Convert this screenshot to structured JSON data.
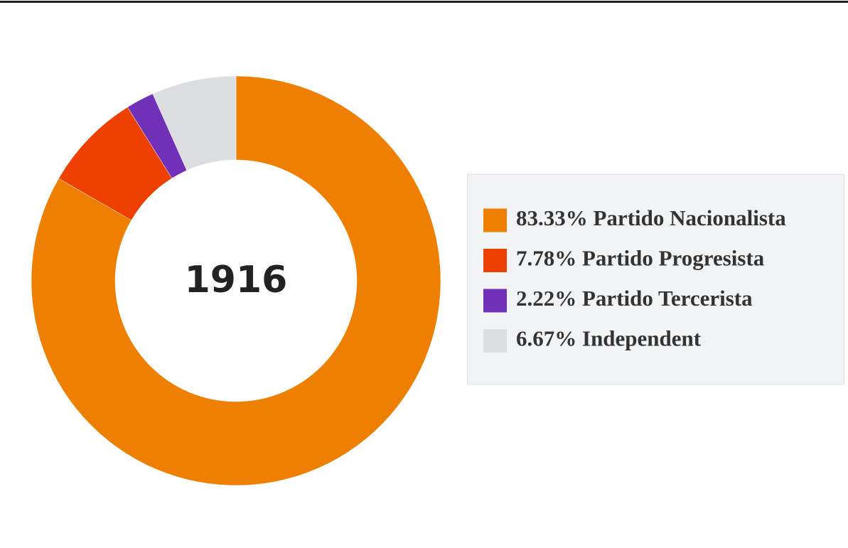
{
  "chart_data": {
    "type": "donut",
    "center_label": "1916",
    "categories": [
      "Partido Nacionalista",
      "Partido Progresista",
      "Partido Tercerista",
      "Independent"
    ],
    "values": [
      83.33,
      7.78,
      2.22,
      6.67
    ],
    "value_labels": [
      "83.33%",
      "7.78%",
      "2.22%",
      "6.67%"
    ],
    "colors": [
      "#ee7f00",
      "#ee4000",
      "#7030b8",
      "#dcdde0"
    ]
  }
}
